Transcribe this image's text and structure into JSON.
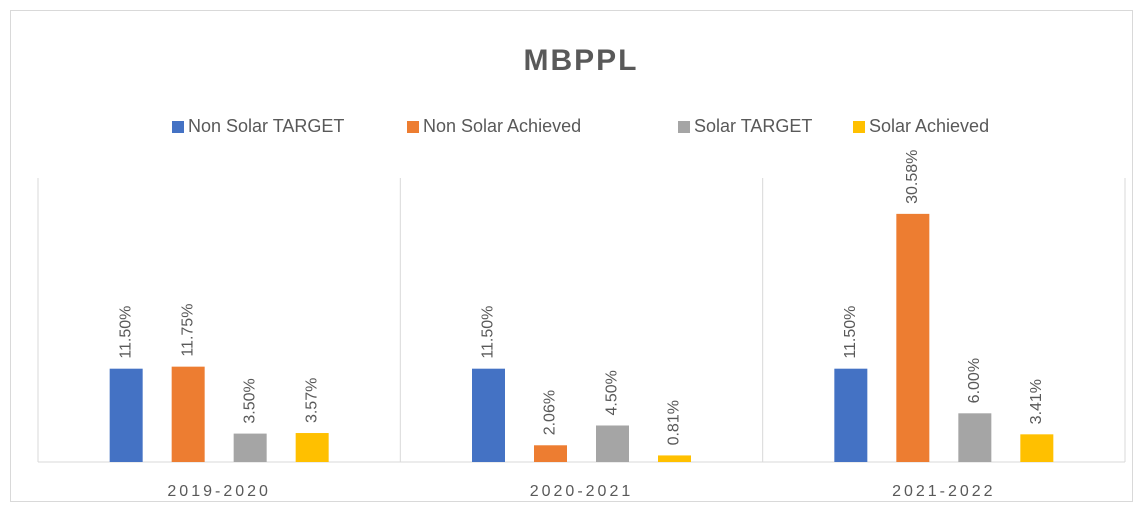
{
  "chart_data": {
    "type": "bar",
    "title": "MBPPL",
    "categories": [
      "2019-2020",
      "2020-2021",
      "2021-2022"
    ],
    "series": [
      {
        "name": "Non Solar TARGET",
        "color": "#4472c4",
        "values": [
          11.5,
          11.5,
          11.5
        ],
        "value_labels": [
          "11.50%",
          "11.50%",
          "11.50%"
        ]
      },
      {
        "name": "Non Solar Achieved",
        "color": "#ed7d31",
        "values": [
          11.75,
          2.06,
          30.58
        ],
        "value_labels": [
          "11.75%",
          "2.06%",
          "30.58%"
        ]
      },
      {
        "name": "Solar TARGET",
        "color": "#a5a5a5",
        "values": [
          3.5,
          4.5,
          6.0
        ],
        "value_labels": [
          "3.50%",
          "4.50%",
          "6.00%"
        ]
      },
      {
        "name": "Solar Achieved",
        "color": "#ffc000",
        "values": [
          3.57,
          0.81,
          3.41
        ],
        "value_labels": [
          "3.57%",
          "0.81%",
          "3.41%"
        ]
      }
    ],
    "ylim": [
      0,
      35
    ],
    "legend": "top"
  }
}
